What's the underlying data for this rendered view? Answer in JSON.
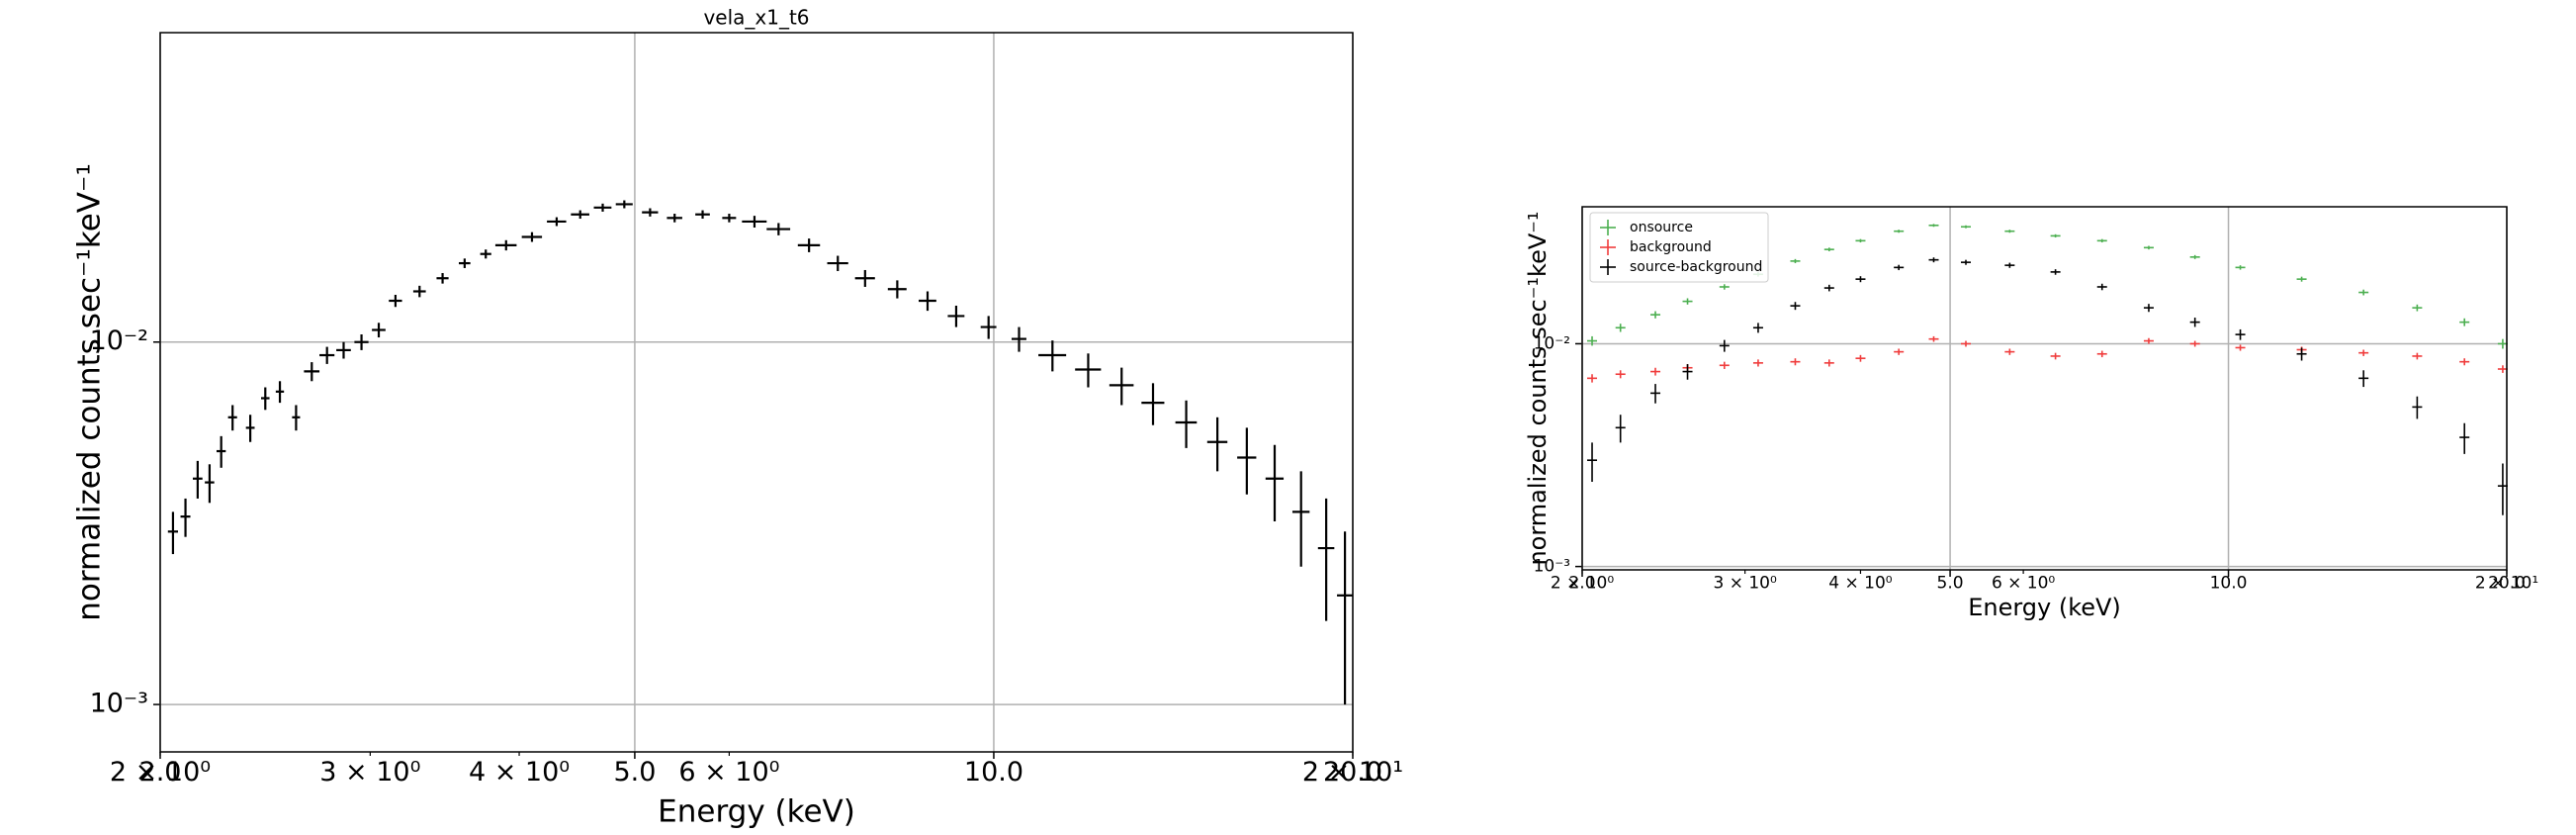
{
  "chart_data": [
    {
      "type": "errorbar",
      "title": "vela_x1_t6",
      "xlabel": "Energy (keV)",
      "ylabel": "normalized counts sec⁻¹keV⁻¹",
      "xscale": "log",
      "yscale": "log",
      "grid": true,
      "color": "#000000",
      "xlim": [
        2,
        20
      ],
      "ylim": [
        0.00074,
        0.0714
      ],
      "xticks": [
        {
          "value": 2,
          "label": "2.0"
        },
        {
          "value": 5,
          "label": "5.0"
        },
        {
          "value": 10,
          "label": "10.0"
        },
        {
          "value": 20,
          "label": "20.0"
        }
      ],
      "xticks_minor": [
        {
          "value": 2,
          "label": "2 × 10⁰"
        },
        {
          "value": 3,
          "label": "3 × 10⁰"
        },
        {
          "value": 4,
          "label": "4 × 10⁰"
        },
        {
          "value": 6,
          "label": "6 × 10⁰"
        },
        {
          "value": 20,
          "label": "2 × 10¹"
        }
      ],
      "yticks": [
        {
          "value": 0.001,
          "label": "10⁻³"
        },
        {
          "value": 0.01,
          "label": "10⁻²"
        }
      ],
      "x": [
        2.05,
        2.1,
        2.15,
        2.2,
        2.25,
        2.3,
        2.38,
        2.45,
        2.52,
        2.6,
        2.68,
        2.76,
        2.85,
        2.95,
        3.05,
        3.15,
        3.3,
        3.45,
        3.6,
        3.75,
        3.9,
        4.1,
        4.3,
        4.5,
        4.7,
        4.9,
        5.15,
        5.4,
        5.7,
        6.0,
        6.3,
        6.6,
        7.0,
        7.4,
        7.8,
        8.3,
        8.8,
        9.3,
        9.9,
        10.5,
        11.2,
        12.0,
        12.8,
        13.6,
        14.5,
        15.4,
        16.3,
        17.2,
        18.1,
        19.0,
        19.7
      ],
      "xerr": [
        0.02,
        0.02,
        0.02,
        0.02,
        0.02,
        0.02,
        0.02,
        0.02,
        0.02,
        0.02,
        0.04,
        0.04,
        0.04,
        0.04,
        0.04,
        0.04,
        0.04,
        0.04,
        0.04,
        0.04,
        0.08,
        0.08,
        0.08,
        0.08,
        0.08,
        0.08,
        0.08,
        0.08,
        0.08,
        0.08,
        0.15,
        0.15,
        0.15,
        0.15,
        0.15,
        0.15,
        0.15,
        0.15,
        0.15,
        0.15,
        0.3,
        0.3,
        0.3,
        0.3,
        0.3,
        0.3,
        0.3,
        0.3,
        0.3,
        0.3,
        0.3
      ],
      "values": [
        0.003,
        0.0033,
        0.0042,
        0.0041,
        0.005,
        0.0062,
        0.0058,
        0.007,
        0.0073,
        0.0062,
        0.0083,
        0.0092,
        0.0095,
        0.01,
        0.0108,
        0.013,
        0.0138,
        0.015,
        0.0165,
        0.0175,
        0.0185,
        0.0195,
        0.0215,
        0.0225,
        0.0235,
        0.024,
        0.0228,
        0.022,
        0.0225,
        0.022,
        0.0215,
        0.0205,
        0.0185,
        0.0165,
        0.015,
        0.014,
        0.013,
        0.0118,
        0.011,
        0.0102,
        0.0092,
        0.0084,
        0.0076,
        0.0068,
        0.006,
        0.0053,
        0.0048,
        0.0042,
        0.0034,
        0.0027,
        0.002
      ],
      "yerr": [
        0.0004,
        0.0004,
        0.0005,
        0.0005,
        0.0005,
        0.0005,
        0.0005,
        0.0005,
        0.0005,
        0.0005,
        0.0005,
        0.0005,
        0.0005,
        0.0005,
        0.0005,
        0.0005,
        0.0005,
        0.0005,
        0.0005,
        0.0005,
        0.0006,
        0.0006,
        0.0006,
        0.0006,
        0.0006,
        0.0006,
        0.0006,
        0.0006,
        0.0006,
        0.0006,
        0.0008,
        0.0008,
        0.0008,
        0.0008,
        0.0008,
        0.0008,
        0.0008,
        0.0008,
        0.0008,
        0.0008,
        0.0009,
        0.0009,
        0.0009,
        0.0009,
        0.0009,
        0.0009,
        0.001,
        0.001,
        0.001,
        0.001,
        0.001
      ]
    },
    {
      "type": "errorbar",
      "xlabel": "Energy (keV)",
      "ylabel": "normalized counts sec⁻¹keV⁻¹",
      "xscale": "log",
      "yscale": "log",
      "grid": true,
      "legend": "upper left",
      "xlim": [
        2,
        20
      ],
      "ylim": [
        0.000966,
        0.0412
      ],
      "xticks": [
        {
          "value": 2,
          "label": "2.0"
        },
        {
          "value": 5,
          "label": "5.0"
        },
        {
          "value": 10,
          "label": "10.0"
        },
        {
          "value": 20,
          "label": "20.0"
        }
      ],
      "xticks_minor": [
        {
          "value": 2,
          "label": "2 × 10⁰"
        },
        {
          "value": 3,
          "label": "3 × 10⁰"
        },
        {
          "value": 4,
          "label": "4 × 10⁰"
        },
        {
          "value": 6,
          "label": "6 × 10⁰"
        },
        {
          "value": 20,
          "label": "2 × 10¹"
        }
      ],
      "yticks": [
        {
          "value": 0.001,
          "label": "10⁻³"
        },
        {
          "value": 0.01,
          "label": "10⁻²"
        }
      ],
      "series": [
        {
          "name": "onsource",
          "color": "#4caf50",
          "x": [
            2.05,
            2.2,
            2.4,
            2.6,
            2.85,
            3.1,
            3.4,
            3.7,
            4.0,
            4.4,
            4.8,
            5.2,
            5.8,
            6.5,
            7.3,
            8.2,
            9.2,
            10.3,
            12.0,
            14.0,
            16.0,
            18.0,
            19.8
          ],
          "values": [
            0.0103,
            0.0118,
            0.0135,
            0.0155,
            0.018,
            0.0205,
            0.0235,
            0.0265,
            0.029,
            0.032,
            0.034,
            0.0335,
            0.032,
            0.0305,
            0.029,
            0.027,
            0.0245,
            0.022,
            0.0195,
            0.017,
            0.0145,
            0.0125,
            0.01
          ],
          "yerr": [
            0.0005,
            0.0005,
            0.0005,
            0.0005,
            0.0005,
            0.0005,
            0.0005,
            0.0005,
            0.0005,
            0.0005,
            0.0005,
            0.0005,
            0.0005,
            0.0005,
            0.0005,
            0.0005,
            0.0005,
            0.0005,
            0.0005,
            0.0005,
            0.0005,
            0.0005,
            0.0005
          ]
        },
        {
          "name": "background",
          "color": "#f03c3c",
          "x": [
            2.05,
            2.2,
            2.4,
            2.6,
            2.85,
            3.1,
            3.4,
            3.7,
            4.0,
            4.4,
            4.8,
            5.2,
            5.8,
            6.5,
            7.3,
            8.2,
            9.2,
            10.3,
            12.0,
            14.0,
            16.0,
            18.0,
            19.8
          ],
          "values": [
            0.007,
            0.0073,
            0.0075,
            0.0078,
            0.008,
            0.0082,
            0.0083,
            0.0082,
            0.0086,
            0.0092,
            0.0105,
            0.01,
            0.0092,
            0.0088,
            0.009,
            0.0103,
            0.01,
            0.0096,
            0.0094,
            0.0091,
            0.0088,
            0.0083,
            0.0077
          ],
          "yerr": [
            0.0003,
            0.0003,
            0.0003,
            0.0003,
            0.0003,
            0.0003,
            0.0003,
            0.0003,
            0.0003,
            0.0003,
            0.0003,
            0.0003,
            0.0003,
            0.0003,
            0.0003,
            0.0003,
            0.0003,
            0.0003,
            0.0003,
            0.0003,
            0.0003,
            0.0003,
            0.0003
          ]
        },
        {
          "name": "source-background",
          "color": "#000000",
          "x": [
            2.05,
            2.2,
            2.4,
            2.6,
            2.85,
            3.1,
            3.4,
            3.7,
            4.0,
            4.4,
            4.8,
            5.2,
            5.8,
            6.5,
            7.3,
            8.2,
            9.2,
            10.3,
            12.0,
            14.0,
            16.0,
            18.0,
            19.8
          ],
          "values": [
            0.003,
            0.0042,
            0.006,
            0.0075,
            0.0098,
            0.0118,
            0.0148,
            0.0178,
            0.0195,
            0.022,
            0.0238,
            0.0232,
            0.0225,
            0.021,
            0.018,
            0.0145,
            0.0125,
            0.011,
            0.009,
            0.007,
            0.0052,
            0.0038,
            0.0023
          ],
          "yerr": [
            0.0006,
            0.0006,
            0.0006,
            0.0006,
            0.0006,
            0.0006,
            0.0006,
            0.0006,
            0.0006,
            0.0006,
            0.0006,
            0.0006,
            0.0006,
            0.0006,
            0.0006,
            0.0006,
            0.0006,
            0.0006,
            0.0006,
            0.0006,
            0.0006,
            0.0006,
            0.0006
          ]
        }
      ]
    }
  ]
}
